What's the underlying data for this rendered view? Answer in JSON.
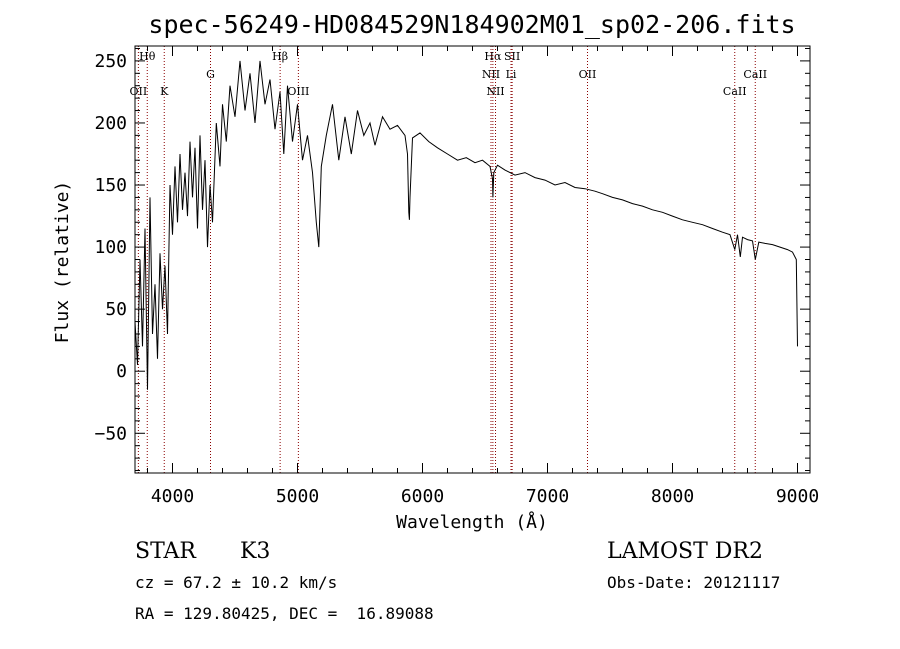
{
  "chart_data": {
    "type": "line",
    "title": "spec-56249-HD084529N184902M01_sp02-206.fits",
    "xlabel": "Wavelength (Å)",
    "ylabel": "Flux (relative)",
    "xlim": [
      3700,
      9100
    ],
    "ylim": [
      -82,
      262
    ],
    "xticks": [
      4000,
      5000,
      6000,
      7000,
      8000,
      9000
    ],
    "yticks": [
      -50,
      0,
      50,
      100,
      150,
      200,
      250
    ],
    "ytick_labels": [
      "−50",
      "0",
      "50",
      "100",
      "150",
      "200",
      "250"
    ],
    "grid": false,
    "line_color": "#000000",
    "marker_color": "#8b0000",
    "series": [
      {
        "values": [
          [
            3700,
            40
          ],
          [
            3720,
            5
          ],
          [
            3740,
            90
          ],
          [
            3760,
            20
          ],
          [
            3780,
            115
          ],
          [
            3800,
            -15
          ],
          [
            3820,
            140
          ],
          [
            3840,
            30
          ],
          [
            3860,
            70
          ],
          [
            3880,
            10
          ],
          [
            3900,
            95
          ],
          [
            3920,
            50
          ],
          [
            3940,
            85
          ],
          [
            3960,
            30
          ],
          [
            3980,
            150
          ],
          [
            4000,
            110
          ],
          [
            4020,
            165
          ],
          [
            4040,
            120
          ],
          [
            4060,
            175
          ],
          [
            4080,
            130
          ],
          [
            4100,
            160
          ],
          [
            4120,
            125
          ],
          [
            4140,
            185
          ],
          [
            4160,
            140
          ],
          [
            4180,
            180
          ],
          [
            4200,
            115
          ],
          [
            4220,
            190
          ],
          [
            4240,
            130
          ],
          [
            4260,
            170
          ],
          [
            4280,
            100
          ],
          [
            4300,
            150
          ],
          [
            4320,
            120
          ],
          [
            4350,
            200
          ],
          [
            4380,
            165
          ],
          [
            4400,
            215
          ],
          [
            4430,
            185
          ],
          [
            4460,
            230
          ],
          [
            4500,
            205
          ],
          [
            4540,
            250
          ],
          [
            4580,
            210
          ],
          [
            4620,
            240
          ],
          [
            4660,
            200
          ],
          [
            4700,
            250
          ],
          [
            4740,
            215
          ],
          [
            4780,
            235
          ],
          [
            4820,
            195
          ],
          [
            4860,
            225
          ],
          [
            4890,
            175
          ],
          [
            4920,
            230
          ],
          [
            4960,
            185
          ],
          [
            5000,
            215
          ],
          [
            5040,
            170
          ],
          [
            5080,
            190
          ],
          [
            5120,
            160
          ],
          [
            5150,
            120
          ],
          [
            5170,
            100
          ],
          [
            5190,
            165
          ],
          [
            5230,
            190
          ],
          [
            5280,
            215
          ],
          [
            5330,
            170
          ],
          [
            5380,
            205
          ],
          [
            5430,
            175
          ],
          [
            5480,
            210
          ],
          [
            5530,
            190
          ],
          [
            5580,
            200
          ],
          [
            5620,
            182
          ],
          [
            5680,
            205
          ],
          [
            5740,
            195
          ],
          [
            5800,
            198
          ],
          [
            5860,
            190
          ],
          [
            5880,
            175
          ],
          [
            5890,
            128
          ],
          [
            5895,
            122
          ],
          [
            5900,
            140
          ],
          [
            5920,
            188
          ],
          [
            5980,
            192
          ],
          [
            6050,
            185
          ],
          [
            6120,
            180
          ],
          [
            6200,
            175
          ],
          [
            6280,
            170
          ],
          [
            6350,
            172
          ],
          [
            6420,
            168
          ],
          [
            6480,
            170
          ],
          [
            6540,
            165
          ],
          [
            6560,
            155
          ],
          [
            6563,
            140
          ],
          [
            6570,
            160
          ],
          [
            6600,
            166
          ],
          [
            6660,
            162
          ],
          [
            6740,
            158
          ],
          [
            6820,
            160
          ],
          [
            6900,
            156
          ],
          [
            6980,
            154
          ],
          [
            7060,
            150
          ],
          [
            7140,
            152
          ],
          [
            7220,
            148
          ],
          [
            7300,
            147
          ],
          [
            7380,
            145
          ],
          [
            7440,
            143
          ],
          [
            7520,
            140
          ],
          [
            7600,
            138
          ],
          [
            7680,
            135
          ],
          [
            7760,
            133
          ],
          [
            7840,
            130
          ],
          [
            7920,
            128
          ],
          [
            8000,
            125
          ],
          [
            8080,
            122
          ],
          [
            8160,
            120
          ],
          [
            8240,
            118
          ],
          [
            8320,
            115
          ],
          [
            8400,
            112
          ],
          [
            8460,
            110
          ],
          [
            8498,
            98
          ],
          [
            8520,
            110
          ],
          [
            8542,
            92
          ],
          [
            8560,
            108
          ],
          [
            8600,
            106
          ],
          [
            8640,
            105
          ],
          [
            8662,
            90
          ],
          [
            8690,
            104
          ],
          [
            8740,
            103
          ],
          [
            8800,
            102
          ],
          [
            8860,
            100
          ],
          [
            8920,
            98
          ],
          [
            8960,
            96
          ],
          [
            8990,
            90
          ],
          [
            9000,
            20
          ]
        ]
      }
    ],
    "lines": [
      {
        "name": "Hθ",
        "x": 3798,
        "level": 0
      },
      {
        "name": "OII",
        "x": 3727,
        "level": 1
      },
      {
        "name": "K",
        "x": 3934,
        "level": 1
      },
      {
        "name": "G",
        "x": 4304,
        "level": 2
      },
      {
        "name": "Hβ",
        "x": 4861,
        "level": 0
      },
      {
        "name": "OIII",
        "x": 5007,
        "level": 1
      },
      {
        "name": "Hα",
        "x": 6563,
        "level": 0
      },
      {
        "name": "SII",
        "x": 6717,
        "level": 0
      },
      {
        "name": "NII",
        "x": 6548,
        "level": 2
      },
      {
        "name": "Li",
        "x": 6708,
        "level": 2
      },
      {
        "name": "NII",
        "x": 6584,
        "level": 1
      },
      {
        "name": "OII",
        "x": 7320,
        "level": 2
      },
      {
        "name": "CaII",
        "x": 8498,
        "level": 1
      },
      {
        "name": "CaII",
        "x": 8662,
        "level": 2
      }
    ]
  },
  "info": {
    "object_class": "STAR",
    "subclass": "K3",
    "cz": "cz = 67.2 ± 10.2 km/s",
    "radec": "RA = 129.80425, DEC =  16.89088",
    "survey": "LAMOST DR2",
    "obs_date": "Obs-Date: 20121117"
  }
}
